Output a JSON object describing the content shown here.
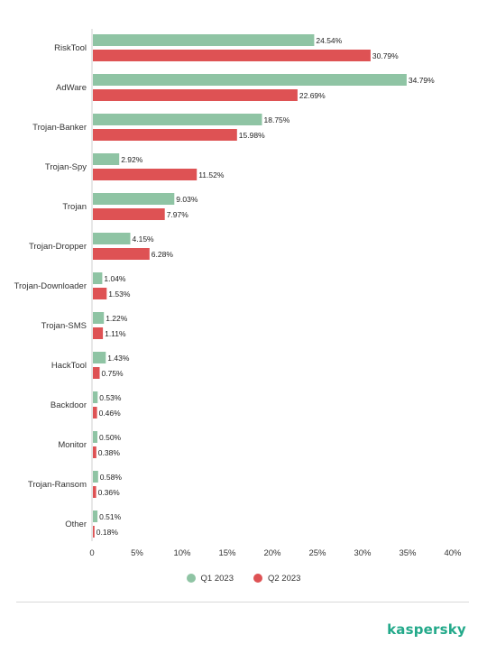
{
  "colors": {
    "q1": "#8fc4a4",
    "q2": "#de5254",
    "axis": "#cfcfcf",
    "brand": "#23a98a"
  },
  "legend": {
    "q1_label": "Q1 2023",
    "q2_label": "Q2 2023"
  },
  "brand": {
    "logo_text": "kaspersky"
  },
  "chart_data": {
    "type": "bar",
    "orientation": "horizontal",
    "categories": [
      "RiskTool",
      "AdWare",
      "Trojan-Banker",
      "Trojan-Spy",
      "Trojan",
      "Trojan-Dropper",
      "Trojan-Downloader",
      "Trojan-SMS",
      "HackTool",
      "Backdoor",
      "Monitor",
      "Trojan-Ransom",
      "Other"
    ],
    "series": [
      {
        "name": "Q1 2023",
        "values": [
          24.54,
          34.79,
          18.75,
          2.92,
          9.03,
          4.15,
          1.04,
          1.22,
          1.43,
          0.53,
          0.5,
          0.58,
          0.51
        ],
        "labels": [
          "24.54%",
          "34.79%",
          "18.75%",
          "2.92%",
          "9.03%",
          "4.15%",
          "1.04%",
          "1.22%",
          "1.43%",
          "0.53%",
          "0.50%",
          "0.58%",
          "0.51%"
        ]
      },
      {
        "name": "Q2 2023",
        "values": [
          30.79,
          22.69,
          15.98,
          11.52,
          7.97,
          6.28,
          1.53,
          1.11,
          0.75,
          0.46,
          0.38,
          0.36,
          0.18
        ],
        "labels": [
          "30.79%",
          "22.69%",
          "15.98%",
          "11.52%",
          "7.97%",
          "6.28%",
          "1.53%",
          "1.11%",
          "0.75%",
          "0.46%",
          "0.38%",
          "0.36%",
          "0.18%"
        ]
      }
    ],
    "xlim": [
      0,
      40
    ],
    "ticks": [
      0,
      5,
      10,
      15,
      20,
      25,
      30,
      35,
      40
    ],
    "tick_labels": [
      "0",
      "5%",
      "10%",
      "15%",
      "20%",
      "25%",
      "30%",
      "35%",
      "40%"
    ],
    "grid": false,
    "legend_position": "bottom-center"
  }
}
